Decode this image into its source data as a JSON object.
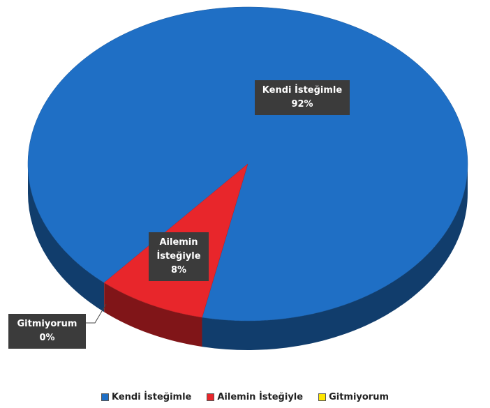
{
  "chart_data": {
    "type": "pie",
    "categories": [
      "Kendi İsteğimle",
      "Ailemin İsteğiyle",
      "Gitmiyorum"
    ],
    "values": [
      92,
      8,
      0
    ],
    "value_labels": [
      "92%",
      "8%",
      "0%"
    ],
    "colors": [
      "#1f6fc5",
      "#e8262b",
      "#ffe600"
    ],
    "legend": "bottom"
  }
}
